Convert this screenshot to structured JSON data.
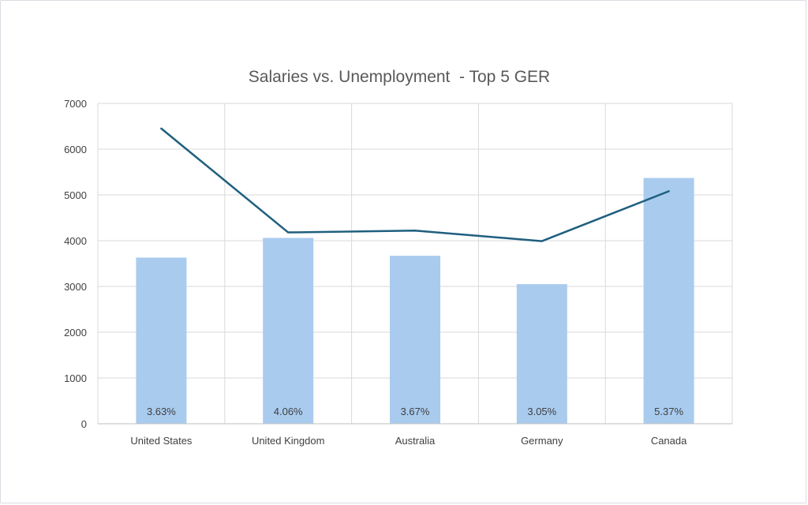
{
  "chart_data": {
    "type": "bar",
    "title": "Salaries vs. Unemployment  - Top 5 GER",
    "xlabel": "",
    "ylabel": "",
    "ylim": [
      0,
      7000
    ],
    "yticks": [
      0,
      1000,
      2000,
      3000,
      4000,
      5000,
      6000,
      7000
    ],
    "grid": true,
    "categories": [
      "United States",
      "United Kingdom",
      "Australia",
      "Germany",
      "Canada"
    ],
    "series": [
      {
        "name": "Unemployment",
        "kind": "bar",
        "values": [
          3630,
          4060,
          3670,
          3050,
          5370
        ],
        "labels": [
          "3.63%",
          "4.06%",
          "3.67%",
          "3.05%",
          "5.37%"
        ],
        "color": "#a9cbee"
      },
      {
        "name": "Salaries",
        "kind": "line",
        "values": [
          6450,
          4180,
          4220,
          3990,
          5080
        ],
        "color": "#1f5f7f"
      }
    ],
    "colors": {
      "grid": "#d9d9d9",
      "axis": "#bfbfbf",
      "text": "#404040",
      "title": "#595959"
    }
  }
}
